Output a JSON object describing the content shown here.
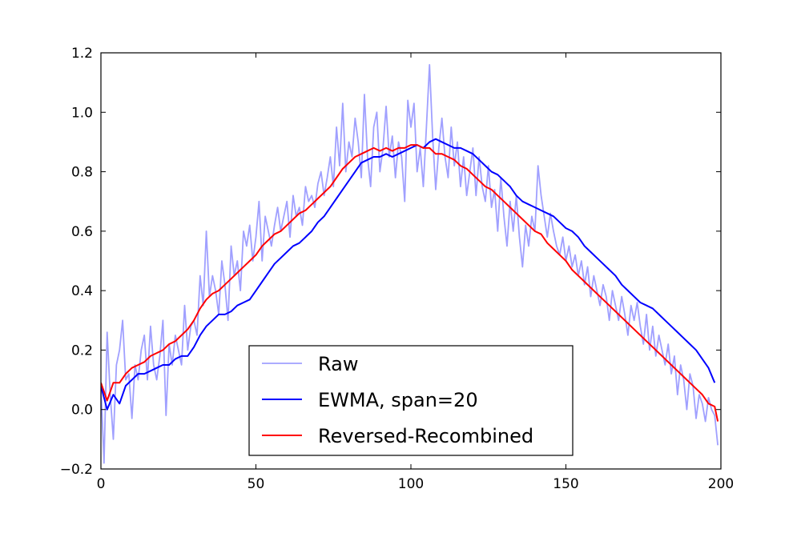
{
  "chart_data": {
    "type": "line",
    "title": "",
    "xlabel": "",
    "ylabel": "",
    "xlim": [
      0,
      200
    ],
    "ylim": [
      -0.2,
      1.2
    ],
    "xticks": [
      0,
      50,
      100,
      150,
      200
    ],
    "yticks": [
      -0.2,
      0.0,
      0.2,
      0.4,
      0.6,
      0.8,
      1.0,
      1.2
    ],
    "xtick_labels": [
      "0",
      "50",
      "100",
      "150",
      "200"
    ],
    "ytick_labels": [
      "−0.2",
      "0.0",
      "0.2",
      "0.4",
      "0.6",
      "0.8",
      "1.0",
      "1.2"
    ],
    "grid": false,
    "legend_position": "lower-center",
    "series": [
      {
        "name": "Raw",
        "color": "#8080ff",
        "x": [
          0,
          1,
          2,
          3,
          4,
          5,
          6,
          7,
          8,
          9,
          10,
          11,
          12,
          13,
          14,
          15,
          16,
          17,
          18,
          19,
          20,
          21,
          22,
          23,
          24,
          25,
          26,
          27,
          28,
          29,
          30,
          31,
          32,
          33,
          34,
          35,
          36,
          37,
          38,
          39,
          40,
          41,
          42,
          43,
          44,
          45,
          46,
          47,
          48,
          49,
          50,
          51,
          52,
          53,
          54,
          55,
          56,
          57,
          58,
          59,
          60,
          61,
          62,
          63,
          64,
          65,
          66,
          67,
          68,
          69,
          70,
          71,
          72,
          73,
          74,
          75,
          76,
          77,
          78,
          79,
          80,
          81,
          82,
          83,
          84,
          85,
          86,
          87,
          88,
          89,
          90,
          91,
          92,
          93,
          94,
          95,
          96,
          97,
          98,
          99,
          100,
          101,
          102,
          103,
          104,
          105,
          106,
          107,
          108,
          109,
          110,
          111,
          112,
          113,
          114,
          115,
          116,
          117,
          118,
          119,
          120,
          121,
          122,
          123,
          124,
          125,
          126,
          127,
          128,
          129,
          130,
          131,
          132,
          133,
          134,
          135,
          136,
          137,
          138,
          139,
          140,
          141,
          142,
          143,
          144,
          145,
          146,
          147,
          148,
          149,
          150,
          151,
          152,
          153,
          154,
          155,
          156,
          157,
          158,
          159,
          160,
          161,
          162,
          163,
          164,
          165,
          166,
          167,
          168,
          169,
          170,
          171,
          172,
          173,
          174,
          175,
          176,
          177,
          178,
          179,
          180,
          181,
          182,
          183,
          184,
          185,
          186,
          187,
          188,
          189,
          190,
          191,
          192,
          193,
          194,
          195,
          196,
          197,
          198,
          199
        ],
        "y": [
          0.08,
          -0.18,
          0.26,
          0.05,
          -0.1,
          0.15,
          0.2,
          0.3,
          0.1,
          0.12,
          -0.03,
          0.15,
          0.1,
          0.2,
          0.25,
          0.1,
          0.28,
          0.15,
          0.1,
          0.18,
          0.3,
          -0.02,
          0.22,
          0.15,
          0.25,
          0.2,
          0.15,
          0.35,
          0.2,
          0.28,
          0.3,
          0.25,
          0.45,
          0.35,
          0.6,
          0.38,
          0.45,
          0.4,
          0.32,
          0.5,
          0.42,
          0.3,
          0.55,
          0.45,
          0.5,
          0.4,
          0.6,
          0.55,
          0.62,
          0.5,
          0.58,
          0.7,
          0.5,
          0.65,
          0.6,
          0.55,
          0.62,
          0.68,
          0.6,
          0.65,
          0.7,
          0.58,
          0.72,
          0.65,
          0.68,
          0.62,
          0.75,
          0.7,
          0.72,
          0.68,
          0.76,
          0.8,
          0.72,
          0.78,
          0.85,
          0.75,
          0.95,
          0.82,
          1.03,
          0.8,
          0.9,
          0.85,
          0.98,
          0.9,
          0.78,
          1.06,
          0.85,
          0.75,
          0.95,
          1.0,
          0.8,
          0.88,
          1.02,
          0.85,
          0.92,
          0.78,
          0.9,
          0.85,
          0.7,
          1.04,
          0.95,
          1.03,
          0.8,
          0.88,
          0.75,
          0.95,
          1.16,
          0.92,
          0.74,
          0.88,
          0.98,
          0.85,
          0.78,
          0.95,
          0.82,
          0.9,
          0.75,
          0.85,
          0.72,
          0.8,
          0.88,
          0.72,
          0.85,
          0.75,
          0.7,
          0.82,
          0.68,
          0.74,
          0.6,
          0.78,
          0.65,
          0.55,
          0.7,
          0.6,
          0.72,
          0.58,
          0.48,
          0.62,
          0.55,
          0.65,
          0.6,
          0.82,
          0.72,
          0.65,
          0.58,
          0.66,
          0.6,
          0.55,
          0.52,
          0.58,
          0.5,
          0.55,
          0.48,
          0.52,
          0.45,
          0.5,
          0.42,
          0.48,
          0.38,
          0.45,
          0.4,
          0.35,
          0.42,
          0.38,
          0.3,
          0.4,
          0.35,
          0.3,
          0.38,
          0.32,
          0.25,
          0.35,
          0.3,
          0.36,
          0.28,
          0.22,
          0.32,
          0.2,
          0.28,
          0.18,
          0.25,
          0.2,
          0.15,
          0.22,
          0.12,
          0.18,
          0.05,
          0.15,
          0.1,
          0.0,
          0.12,
          0.08,
          -0.03,
          0.05,
          0.02,
          -0.04,
          0.04,
          0.0,
          -0.02,
          -0.12
        ]
      },
      {
        "name": "EWMA, span=20",
        "color": "#0000ff",
        "x": [
          0,
          2,
          4,
          6,
          8,
          10,
          12,
          14,
          16,
          18,
          20,
          22,
          24,
          26,
          28,
          30,
          32,
          34,
          36,
          38,
          40,
          42,
          44,
          46,
          48,
          50,
          52,
          54,
          56,
          58,
          60,
          62,
          64,
          66,
          68,
          70,
          72,
          74,
          76,
          78,
          80,
          82,
          84,
          86,
          88,
          90,
          92,
          94,
          96,
          98,
          100,
          102,
          104,
          106,
          108,
          110,
          112,
          114,
          116,
          118,
          120,
          122,
          124,
          126,
          128,
          130,
          132,
          134,
          136,
          138,
          140,
          142,
          144,
          146,
          148,
          150,
          152,
          154,
          156,
          158,
          160,
          162,
          164,
          166,
          168,
          170,
          172,
          174,
          176,
          178,
          180,
          182,
          184,
          186,
          188,
          190,
          192,
          194,
          196,
          198
        ],
        "y": [
          0.08,
          0.0,
          0.05,
          0.02,
          0.08,
          0.1,
          0.12,
          0.12,
          0.13,
          0.14,
          0.15,
          0.15,
          0.17,
          0.18,
          0.18,
          0.21,
          0.25,
          0.28,
          0.3,
          0.32,
          0.32,
          0.33,
          0.35,
          0.36,
          0.37,
          0.4,
          0.43,
          0.46,
          0.49,
          0.51,
          0.53,
          0.55,
          0.56,
          0.58,
          0.6,
          0.63,
          0.65,
          0.68,
          0.71,
          0.74,
          0.77,
          0.8,
          0.83,
          0.84,
          0.85,
          0.85,
          0.86,
          0.85,
          0.86,
          0.87,
          0.88,
          0.89,
          0.88,
          0.9,
          0.91,
          0.9,
          0.89,
          0.88,
          0.88,
          0.87,
          0.86,
          0.84,
          0.82,
          0.8,
          0.79,
          0.77,
          0.75,
          0.72,
          0.7,
          0.69,
          0.68,
          0.67,
          0.66,
          0.65,
          0.63,
          0.61,
          0.6,
          0.58,
          0.55,
          0.53,
          0.51,
          0.49,
          0.47,
          0.45,
          0.42,
          0.4,
          0.38,
          0.36,
          0.35,
          0.34,
          0.32,
          0.3,
          0.28,
          0.26,
          0.24,
          0.22,
          0.2,
          0.17,
          0.14,
          0.09
        ]
      },
      {
        "name": "Reversed-Recombined",
        "color": "#ff0000",
        "x": [
          0,
          2,
          4,
          6,
          8,
          10,
          12,
          14,
          16,
          18,
          20,
          22,
          24,
          26,
          28,
          30,
          32,
          34,
          36,
          38,
          40,
          42,
          44,
          46,
          48,
          50,
          52,
          54,
          56,
          58,
          60,
          62,
          64,
          66,
          68,
          70,
          72,
          74,
          76,
          78,
          80,
          82,
          84,
          86,
          88,
          90,
          92,
          94,
          96,
          98,
          100,
          102,
          104,
          106,
          108,
          110,
          112,
          114,
          116,
          118,
          120,
          122,
          124,
          126,
          128,
          130,
          132,
          134,
          136,
          138,
          140,
          142,
          144,
          146,
          148,
          150,
          152,
          154,
          156,
          158,
          160,
          162,
          164,
          166,
          168,
          170,
          172,
          174,
          176,
          178,
          180,
          182,
          184,
          186,
          188,
          190,
          192,
          194,
          196,
          198,
          199
        ],
        "y": [
          0.09,
          0.03,
          0.09,
          0.09,
          0.12,
          0.14,
          0.15,
          0.16,
          0.18,
          0.19,
          0.2,
          0.22,
          0.23,
          0.25,
          0.27,
          0.3,
          0.34,
          0.37,
          0.39,
          0.4,
          0.42,
          0.44,
          0.46,
          0.48,
          0.5,
          0.52,
          0.55,
          0.57,
          0.59,
          0.6,
          0.62,
          0.64,
          0.66,
          0.67,
          0.69,
          0.71,
          0.73,
          0.75,
          0.78,
          0.81,
          0.83,
          0.85,
          0.86,
          0.87,
          0.88,
          0.87,
          0.88,
          0.87,
          0.88,
          0.88,
          0.89,
          0.89,
          0.88,
          0.88,
          0.86,
          0.86,
          0.85,
          0.84,
          0.82,
          0.81,
          0.79,
          0.77,
          0.75,
          0.74,
          0.72,
          0.7,
          0.68,
          0.66,
          0.64,
          0.62,
          0.6,
          0.59,
          0.56,
          0.54,
          0.52,
          0.5,
          0.47,
          0.45,
          0.43,
          0.41,
          0.39,
          0.37,
          0.35,
          0.33,
          0.31,
          0.29,
          0.27,
          0.25,
          0.23,
          0.21,
          0.19,
          0.17,
          0.15,
          0.13,
          0.11,
          0.09,
          0.07,
          0.05,
          0.02,
          0.01,
          -0.04
        ]
      }
    ]
  }
}
